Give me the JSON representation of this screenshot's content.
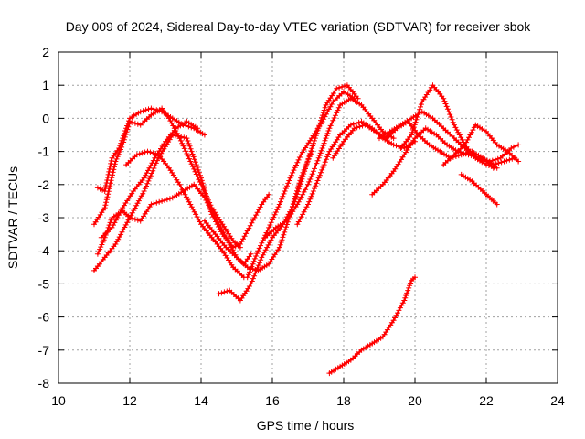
{
  "chart_data": {
    "type": "scatter",
    "title": "Day 009 of 2024, Sidereal Day-to-day VTEC variation (SDTVAR) for receiver sbok",
    "xlabel": "GPS time / hours",
    "ylabel": "SDTVAR / TECUs",
    "xlim": [
      10,
      24
    ],
    "ylim": [
      -8,
      2
    ],
    "x_ticks": [
      "10",
      "12",
      "14",
      "16",
      "18",
      "20",
      "22",
      "24"
    ],
    "y_ticks": [
      "2",
      "1",
      "0",
      "-1",
      "-2",
      "-3",
      "-4",
      "-5",
      "-6",
      "-7",
      "-8"
    ],
    "grid": true,
    "marker": "+",
    "color": "#ff0000",
    "series": [
      {
        "x": [
          11.0,
          11.3,
          11.6,
          12.0,
          12.4,
          12.8,
          13.2,
          13.6,
          14.0,
          14.3,
          14.6,
          14.9,
          15.1,
          15.3,
          15.5,
          15.7,
          15.9
        ],
        "y": [
          -4.6,
          -4.2,
          -3.8,
          -3.0,
          -2.2,
          -1.2,
          -0.5,
          -0.6,
          -1.8,
          -2.9,
          -3.5,
          -3.9,
          -3.8,
          -3.4,
          -3.0,
          -2.6,
          -2.3
        ]
      },
      {
        "x": [
          11.1,
          11.3,
          11.5,
          11.8,
          12.0,
          12.3,
          12.6,
          12.9,
          13.2,
          13.5,
          13.8,
          14.1,
          14.4,
          14.7,
          15.0,
          15.2,
          15.4
        ],
        "y": [
          -4.1,
          -3.6,
          -3.0,
          -2.8,
          -3.0,
          -3.1,
          -2.6,
          -2.5,
          -2.4,
          -2.2,
          -2.0,
          -2.4,
          -3.0,
          -3.6,
          -4.2,
          -4.4,
          -4.1
        ]
      },
      {
        "x": [
          11.0,
          11.3,
          11.6,
          11.8,
          12.0,
          12.3,
          12.6,
          12.9,
          13.1,
          13.4,
          13.7,
          14.0,
          14.3,
          14.6,
          14.9,
          15.1
        ],
        "y": [
          -3.2,
          -2.7,
          -1.3,
          -0.8,
          -0.1,
          -0.2,
          0.1,
          0.3,
          0.0,
          -0.6,
          -1.3,
          -2.0,
          -2.7,
          -3.2,
          -3.7,
          -3.9
        ]
      },
      {
        "x": [
          11.1,
          11.3,
          11.5,
          11.7,
          11.8,
          12.0,
          12.3,
          12.6,
          12.9,
          13.2,
          13.5,
          13.8,
          14.1
        ],
        "y": [
          -2.1,
          -2.2,
          -1.2,
          -0.9,
          -0.6,
          0.0,
          0.2,
          0.3,
          0.2,
          0.0,
          -0.2,
          -0.3,
          -0.5
        ]
      },
      {
        "x": [
          11.2,
          11.5,
          11.8,
          12.1,
          12.4,
          12.7,
          13.0,
          13.3,
          13.6,
          13.9
        ],
        "y": [
          -3.6,
          -3.3,
          -2.7,
          -2.2,
          -1.8,
          -1.2,
          -0.7,
          -0.3,
          -0.1,
          -0.3
        ]
      },
      {
        "x": [
          11.9,
          12.2,
          12.5,
          12.8,
          13.1,
          13.4,
          13.7,
          14.0,
          14.3,
          14.6,
          14.9,
          15.2
        ],
        "y": [
          -1.4,
          -1.1,
          -1.0,
          -1.1,
          -1.5,
          -2.0,
          -2.6,
          -3.2,
          -3.6,
          -4.0,
          -4.5,
          -4.8
        ]
      },
      {
        "x": [
          14.1,
          14.4,
          14.7,
          15.0,
          15.3,
          15.6,
          15.9,
          16.2,
          16.5,
          16.8,
          17.1
        ],
        "y": [
          -3.1,
          -3.5,
          -3.9,
          -4.2,
          -4.5,
          -4.6,
          -4.4,
          -3.9,
          -2.9,
          -1.8,
          -1.0
        ]
      },
      {
        "x": [
          14.5,
          14.8,
          15.1,
          15.4,
          15.7,
          16.0,
          16.3,
          16.6,
          16.9,
          17.2,
          17.5,
          17.8,
          18.1,
          18.4
        ],
        "y": [
          -5.3,
          -5.2,
          -5.5,
          -5.0,
          -4.2,
          -3.6,
          -3.2,
          -2.6,
          -1.6,
          -0.6,
          0.4,
          0.9,
          1.0,
          0.6
        ]
      },
      {
        "x": [
          15.3,
          15.6,
          15.9,
          16.2,
          16.5,
          16.8,
          17.1,
          17.4,
          17.7,
          18.0,
          18.3
        ],
        "y": [
          -4.8,
          -4.0,
          -3.3,
          -2.6,
          -1.8,
          -1.1,
          -0.6,
          -0.1,
          0.5,
          0.8,
          0.6
        ]
      },
      {
        "x": [
          15.8,
          16.1,
          16.4,
          16.7,
          17.0,
          17.3,
          17.6,
          17.9,
          18.2,
          18.5,
          18.8,
          19.1,
          19.4
        ],
        "y": [
          -3.6,
          -3.3,
          -3.1,
          -2.6,
          -2.0,
          -1.2,
          -0.3,
          0.4,
          0.6,
          0.4,
          0.0,
          -0.4,
          -0.6
        ]
      },
      {
        "x": [
          16.7,
          17.0,
          17.3,
          17.6,
          17.9,
          18.2,
          18.5,
          18.8,
          19.1,
          19.4,
          19.7,
          20.0
        ],
        "y": [
          -3.2,
          -2.6,
          -1.8,
          -1.0,
          -0.5,
          -0.2,
          -0.1,
          -0.3,
          -0.6,
          -0.8,
          -0.9,
          -0.7
        ]
      },
      {
        "x": [
          17.7,
          18.0,
          18.3,
          18.6,
          18.9,
          19.2,
          19.5,
          19.8,
          20.1,
          20.4,
          20.7,
          21.0,
          21.3,
          21.6,
          21.9,
          22.2,
          22.5,
          22.8
        ],
        "y": [
          -1.2,
          -0.7,
          -0.3,
          -0.2,
          -0.4,
          -0.6,
          -0.3,
          -0.1,
          -0.5,
          -0.8,
          -1.0,
          -1.2,
          -1.1,
          -1.0,
          -1.2,
          -1.4,
          -1.3,
          -1.2
        ]
      },
      {
        "x": [
          18.8,
          19.1,
          19.4,
          19.7,
          20.0,
          20.3,
          20.6,
          20.9,
          21.2,
          21.5,
          21.8,
          22.1,
          22.4,
          22.7,
          22.9
        ],
        "y": [
          -2.3,
          -2.0,
          -1.6,
          -1.1,
          -0.6,
          -0.3,
          -0.5,
          -0.8,
          -1.0,
          -1.1,
          -1.2,
          -1.3,
          -1.2,
          -0.9,
          -0.8
        ]
      },
      {
        "x": [
          19.0,
          19.3,
          19.6,
          19.9,
          20.2,
          20.5,
          20.8,
          21.1,
          21.4,
          21.7,
          22.0,
          22.2
        ],
        "y": [
          -0.6,
          -0.4,
          -0.2,
          0.0,
          0.2,
          0.0,
          -0.3,
          -0.6,
          -0.9,
          -1.2,
          -1.3,
          -1.5
        ]
      },
      {
        "x": [
          19.6,
          19.9,
          20.2,
          20.5,
          20.8,
          21.1,
          21.4,
          21.7,
          22.0,
          22.3
        ],
        "y": [
          -0.9,
          -0.5,
          0.5,
          1.0,
          0.6,
          -0.2,
          -0.8,
          -1.2,
          -1.4,
          -1.5
        ]
      },
      {
        "x": [
          20.8,
          21.1,
          21.4,
          21.7,
          22.0,
          22.3,
          22.6,
          22.9
        ],
        "y": [
          -1.4,
          -1.1,
          -0.8,
          -0.2,
          -0.4,
          -0.8,
          -1.0,
          -1.3
        ]
      },
      {
        "x": [
          21.3,
          21.6,
          21.9,
          22.1,
          22.3
        ],
        "y": [
          -1.7,
          -1.9,
          -2.2,
          -2.4,
          -2.6
        ]
      },
      {
        "x": [
          17.6,
          17.9,
          18.2,
          18.5,
          18.8,
          19.1,
          19.4,
          19.7,
          19.9,
          20.0
        ],
        "y": [
          -7.7,
          -7.5,
          -7.3,
          -7.0,
          -6.8,
          -6.6,
          -6.1,
          -5.5,
          -4.9,
          -4.8
        ]
      }
    ]
  }
}
